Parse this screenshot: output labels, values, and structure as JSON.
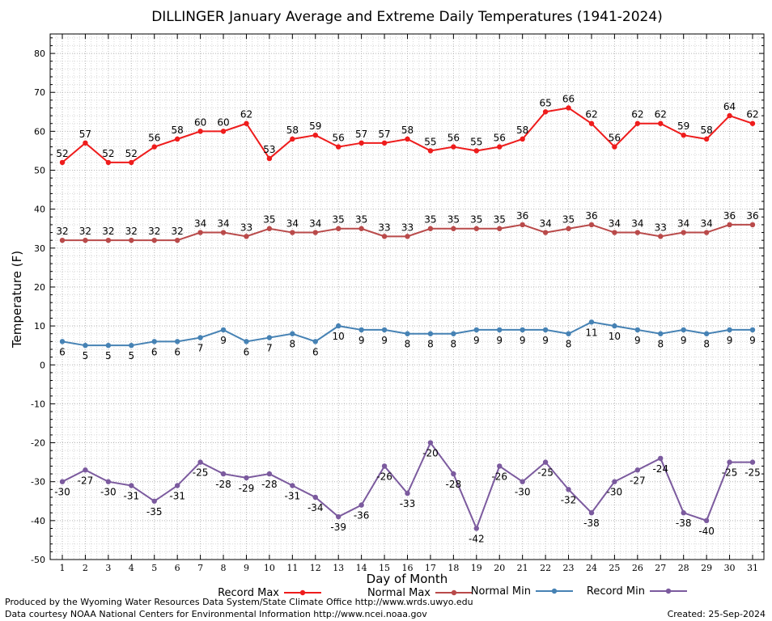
{
  "chart_data": {
    "type": "line",
    "title": "DILLINGER January Average and Extreme Daily Temperatures (1941-2024)",
    "xlabel": "Day of Month",
    "ylabel": "Temperature (F)",
    "x": [
      1,
      2,
      3,
      4,
      5,
      6,
      7,
      8,
      9,
      10,
      11,
      12,
      13,
      14,
      15,
      16,
      17,
      18,
      19,
      20,
      21,
      22,
      23,
      24,
      25,
      26,
      27,
      28,
      29,
      30,
      31
    ],
    "xlim": [
      1,
      31
    ],
    "ylim": [
      -50,
      85
    ],
    "yticks": [
      -50,
      -40,
      -30,
      -20,
      -10,
      0,
      10,
      20,
      30,
      40,
      50,
      60,
      70,
      80
    ],
    "grid": true,
    "legend_position": "bottom",
    "series": [
      {
        "name": "Record Max",
        "color": "#ee1c1c",
        "values": [
          52,
          57,
          52,
          52,
          56,
          58,
          60,
          60,
          62,
          53,
          58,
          59,
          56,
          57,
          57,
          58,
          55,
          56,
          55,
          56,
          58,
          65,
          66,
          62,
          56,
          62,
          62,
          59,
          58,
          64,
          62
        ]
      },
      {
        "name": "Normal Max",
        "color": "#b94a4a",
        "values": [
          32,
          32,
          32,
          32,
          32,
          32,
          34,
          34,
          33,
          35,
          34,
          34,
          35,
          35,
          33,
          33,
          35,
          35,
          35,
          35,
          36,
          34,
          35,
          36,
          34,
          34,
          33,
          34,
          34,
          36,
          36
        ]
      },
      {
        "name": "Normal Min",
        "color": "#4682b4",
        "values": [
          6,
          5,
          5,
          5,
          6,
          6,
          7,
          9,
          6,
          7,
          8,
          6,
          10,
          9,
          9,
          8,
          8,
          8,
          9,
          9,
          9,
          9,
          8,
          11,
          10,
          9,
          8,
          9,
          8,
          9,
          9
        ]
      },
      {
        "name": "Record Min",
        "color": "#7b5a9e",
        "values": [
          -30,
          -27,
          -30,
          -31,
          -35,
          -31,
          -25,
          -28,
          -29,
          -28,
          -31,
          -34,
          -39,
          -36,
          -26,
          -33,
          -20,
          -28,
          -42,
          -26,
          -30,
          -25,
          -32,
          -38,
          -30,
          -27,
          -24,
          -38,
          -40,
          -25,
          -25
        ]
      }
    ]
  },
  "footer": {
    "line1": "Produced by the Wyoming Water Resources Data System/State Climate Office http://www.wrds.uwyo.edu",
    "line2": "Data courtesy NOAA National Centers for Environmental Information http://www.ncei.noaa.gov",
    "created": "Created:  25-Sep-2024"
  }
}
